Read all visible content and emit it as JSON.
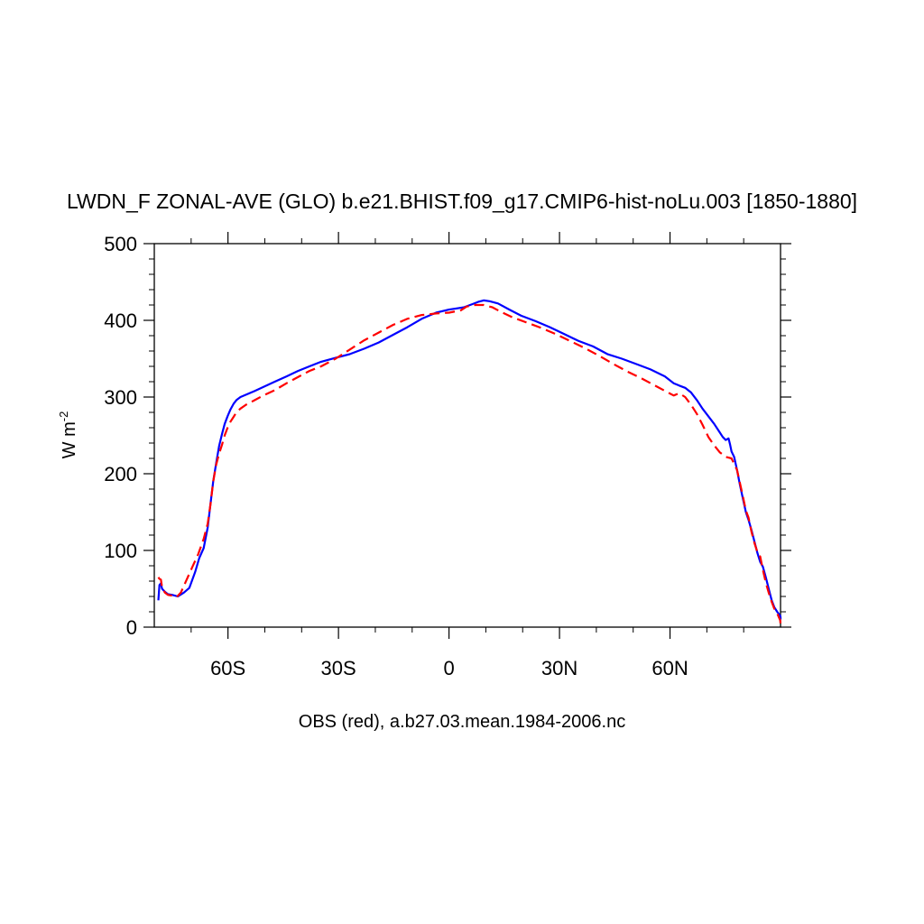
{
  "chart_data": {
    "type": "line",
    "title": "LWDN_F ZONAL-AVE (GLO) b.e21.BHIST.f09_g17.CMIP6-hist-noLu.003 [1850-1880]",
    "subtitle": "OBS (red), a.b27.03.mean.1984-2006.nc",
    "ylabel_base": "W m",
    "ylabel_exp": "-2",
    "xlim": [
      -80,
      90
    ],
    "ylim": [
      0,
      500
    ],
    "xticks": [
      {
        "value": -60,
        "label": "60S"
      },
      {
        "value": -30,
        "label": "30S"
      },
      {
        "value": 0,
        "label": "0"
      },
      {
        "value": 30,
        "label": "30N"
      },
      {
        "value": 60,
        "label": "60N"
      }
    ],
    "yticks": [
      {
        "value": 0,
        "label": "0"
      },
      {
        "value": 100,
        "label": "100"
      },
      {
        "value": 200,
        "label": "200"
      },
      {
        "value": 300,
        "label": "300"
      },
      {
        "value": 400,
        "label": "400"
      },
      {
        "value": 500,
        "label": "500"
      }
    ],
    "series": [
      {
        "color": "#0000ff",
        "dash": "solid",
        "points": [
          [
            -78.9,
            35
          ],
          [
            -78.6,
            55
          ],
          [
            -78.2,
            57
          ],
          [
            -77.9,
            50
          ],
          [
            -77.1,
            46
          ],
          [
            -76.3,
            43
          ],
          [
            -75.1,
            42
          ],
          [
            -73.6,
            40
          ],
          [
            -72.0,
            45
          ],
          [
            -70.5,
            51
          ],
          [
            -68.9,
            72
          ],
          [
            -67.8,
            90
          ],
          [
            -66.6,
            103
          ],
          [
            -65.5,
            130
          ],
          [
            -64.7,
            163
          ],
          [
            -64.0,
            190
          ],
          [
            -63.2,
            214
          ],
          [
            -62.4,
            236
          ],
          [
            -61.6,
            252
          ],
          [
            -60.9,
            265
          ],
          [
            -60.1,
            275
          ],
          [
            -59.3,
            284
          ],
          [
            -58.5,
            291
          ],
          [
            -57.7,
            296
          ],
          [
            -56.6,
            300
          ],
          [
            -55.1,
            303
          ],
          [
            -52.7,
            308
          ],
          [
            -50.4,
            313
          ],
          [
            -47.3,
            320
          ],
          [
            -44.1,
            327
          ],
          [
            -41.0,
            334
          ],
          [
            -37.9,
            340
          ],
          [
            -34.7,
            346
          ],
          [
            -30.8,
            351
          ],
          [
            -26.9,
            356
          ],
          [
            -23.0,
            363
          ],
          [
            -19.1,
            371
          ],
          [
            -15.2,
            381
          ],
          [
            -11.3,
            391
          ],
          [
            -7.4,
            402
          ],
          [
            -3.5,
            410
          ],
          [
            0,
            414
          ],
          [
            4.0,
            417
          ],
          [
            6.3,
            421
          ],
          [
            7.9,
            424
          ],
          [
            9.4,
            426
          ],
          [
            11.0,
            425
          ],
          [
            13.3,
            422
          ],
          [
            16.4,
            414
          ],
          [
            19.6,
            406
          ],
          [
            23.5,
            399
          ],
          [
            27.4,
            391
          ],
          [
            31.3,
            382
          ],
          [
            35.2,
            373
          ],
          [
            39.1,
            366
          ],
          [
            43.0,
            356
          ],
          [
            46.9,
            350
          ],
          [
            50.8,
            343
          ],
          [
            54.7,
            336
          ],
          [
            58.6,
            327
          ],
          [
            61.0,
            318
          ],
          [
            62.5,
            315
          ],
          [
            64.1,
            312
          ],
          [
            65.7,
            306
          ],
          [
            67.3,
            296
          ],
          [
            68.8,
            285
          ],
          [
            70.4,
            275
          ],
          [
            72.0,
            265
          ],
          [
            73.5,
            254
          ],
          [
            74.3,
            248
          ],
          [
            75.1,
            244
          ],
          [
            75.9,
            246
          ],
          [
            76.3,
            238
          ],
          [
            76.7,
            229
          ],
          [
            77.4,
            222
          ],
          [
            78.2,
            205
          ],
          [
            79.0,
            185
          ],
          [
            79.8,
            167
          ],
          [
            80.6,
            150
          ],
          [
            81.3,
            140
          ],
          [
            82.1,
            127
          ],
          [
            82.9,
            112
          ],
          [
            83.7,
            97
          ],
          [
            84.5,
            85
          ],
          [
            85.2,
            79
          ],
          [
            86.0,
            65
          ],
          [
            86.8,
            50
          ],
          [
            87.6,
            35
          ],
          [
            88.3,
            26
          ],
          [
            89.1,
            20
          ],
          [
            89.9,
            15
          ],
          [
            90.7,
            13
          ],
          [
            92.2,
            12
          ],
          [
            94.6,
            11
          ],
          [
            97.7,
            10
          ]
        ]
      },
      {
        "color": "#ff0000",
        "dash": "dashed",
        "points": [
          [
            -78.9,
            65
          ],
          [
            -78.6,
            63
          ],
          [
            -78.2,
            62
          ],
          [
            -77.9,
            52
          ],
          [
            -77.1,
            45
          ],
          [
            -76.3,
            42
          ],
          [
            -75.1,
            41
          ],
          [
            -74.0,
            39
          ],
          [
            -72.8,
            45
          ],
          [
            -71.2,
            62
          ],
          [
            -69.7,
            78
          ],
          [
            -68.1,
            95
          ],
          [
            -66.6,
            115
          ],
          [
            -65.5,
            135
          ],
          [
            -64.7,
            162
          ],
          [
            -64.0,
            190
          ],
          [
            -63.2,
            212
          ],
          [
            -62.4,
            226
          ],
          [
            -61.6,
            238
          ],
          [
            -60.9,
            250
          ],
          [
            -60.1,
            260
          ],
          [
            -59.3,
            268
          ],
          [
            -58.5,
            274
          ],
          [
            -57.7,
            280
          ],
          [
            -56.6,
            285
          ],
          [
            -55.1,
            290
          ],
          [
            -52.7,
            296
          ],
          [
            -50.4,
            302
          ],
          [
            -47.3,
            309
          ],
          [
            -44.1,
            318
          ],
          [
            -41.0,
            326
          ],
          [
            -37.9,
            334
          ],
          [
            -34.7,
            340
          ],
          [
            -30.8,
            350
          ],
          [
            -26.9,
            362
          ],
          [
            -23.0,
            374
          ],
          [
            -19.1,
            384
          ],
          [
            -15.2,
            394
          ],
          [
            -11.3,
            402
          ],
          [
            -7.4,
            407
          ],
          [
            -3.5,
            409
          ],
          [
            0,
            410
          ],
          [
            3.2,
            413
          ],
          [
            4.8,
            418
          ],
          [
            7.1,
            420
          ],
          [
            9.4,
            420
          ],
          [
            11.8,
            417
          ],
          [
            14.1,
            411
          ],
          [
            17.2,
            404
          ],
          [
            21.2,
            397
          ],
          [
            25.1,
            390
          ],
          [
            29.0,
            382
          ],
          [
            32.9,
            373
          ],
          [
            36.8,
            364
          ],
          [
            40.7,
            354
          ],
          [
            44.6,
            343
          ],
          [
            48.5,
            333
          ],
          [
            52.4,
            324
          ],
          [
            56.3,
            314
          ],
          [
            59.4,
            306
          ],
          [
            61.0,
            302
          ],
          [
            62.5,
            305
          ],
          [
            64.1,
            300
          ],
          [
            65.7,
            290
          ],
          [
            67.3,
            278
          ],
          [
            68.8,
            264
          ],
          [
            70.4,
            248
          ],
          [
            72.0,
            237
          ],
          [
            73.5,
            228
          ],
          [
            75.1,
            222
          ],
          [
            76.7,
            220
          ],
          [
            78.2,
            205
          ],
          [
            79.8,
            170
          ],
          [
            80.6,
            152
          ],
          [
            81.3,
            143
          ],
          [
            82.1,
            125
          ],
          [
            82.9,
            110
          ],
          [
            83.7,
            98
          ],
          [
            84.5,
            92
          ],
          [
            85.2,
            75
          ],
          [
            86.0,
            58
          ],
          [
            86.8,
            45
          ],
          [
            87.6,
            33
          ],
          [
            88.3,
            24
          ],
          [
            89.1,
            18
          ],
          [
            89.9,
            9
          ],
          [
            90.7,
            4
          ],
          [
            92.2,
            2
          ],
          [
            94.6,
            2
          ],
          [
            97.7,
            2
          ]
        ]
      }
    ]
  }
}
